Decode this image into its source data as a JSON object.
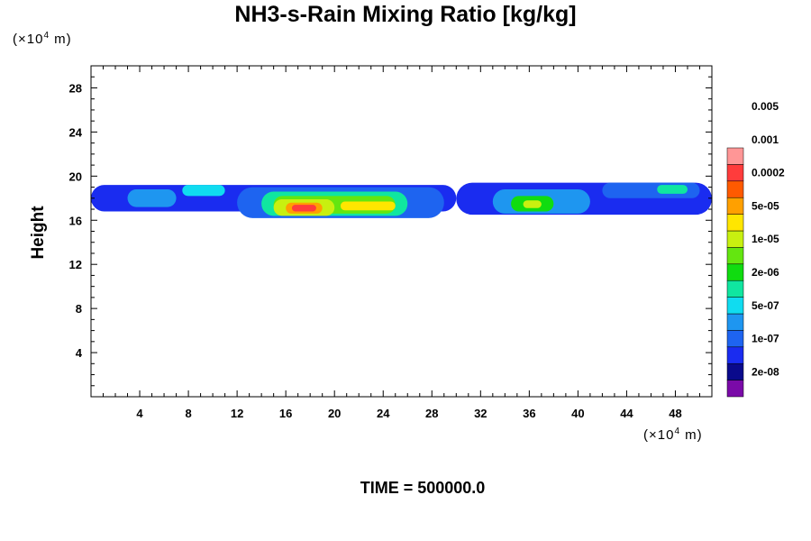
{
  "chart_data": {
    "type": "heatmap",
    "title": "NH3-s-Rain Mixing Ratio [kg/kg]",
    "ylabel": "Height",
    "xlabel": "",
    "y_unit": "(×10⁴ m)",
    "x_unit": "(×10⁴ m)",
    "xlim": [
      0,
      51
    ],
    "ylim": [
      0,
      30
    ],
    "x_ticks": [
      4,
      8,
      12,
      16,
      20,
      24,
      28,
      32,
      36,
      40,
      44,
      48
    ],
    "y_ticks": [
      4,
      8,
      12,
      16,
      20,
      24,
      28
    ],
    "colorbar": {
      "levels": [
        "2e-08",
        "1e-07",
        "5e-07",
        "2e-06",
        "1e-05",
        "5e-05",
        "0.0002",
        "0.001",
        "0.005"
      ],
      "colors": [
        "#7a0aa8",
        "#0a0a8c",
        "#1a2cf0",
        "#1e64f0",
        "#1e96f0",
        "#10dcf0",
        "#10e6a0",
        "#10dc10",
        "#64e610",
        "#c8f010",
        "#ffe600",
        "#ffa000",
        "#ff5a00",
        "#ff3c3c",
        "#ff9696"
      ]
    },
    "regions": [
      {
        "x": [
          0,
          5
        ],
        "y": [
          17.3,
          18.4
        ],
        "level": 1
      },
      {
        "x": [
          0,
          30
        ],
        "y": [
          16.8,
          19.2
        ],
        "level": 2
      },
      {
        "x": [
          3,
          7
        ],
        "y": [
          17.2,
          18.8
        ],
        "level": 4
      },
      {
        "x": [
          7.5,
          11
        ],
        "y": [
          18.2,
          19.2
        ],
        "level": 5
      },
      {
        "x": [
          12,
          29
        ],
        "y": [
          16.2,
          19.0
        ],
        "level": 3
      },
      {
        "x": [
          14,
          26
        ],
        "y": [
          16.4,
          18.6
        ],
        "level": 6
      },
      {
        "x": [
          15,
          25
        ],
        "y": [
          16.6,
          18.2
        ],
        "level": 8
      },
      {
        "x": [
          15,
          20
        ],
        "y": [
          16.4,
          17.9
        ],
        "level": 9
      },
      {
        "x": [
          16,
          19
        ],
        "y": [
          16.6,
          17.6
        ],
        "level": 11
      },
      {
        "x": [
          16.5,
          18.5
        ],
        "y": [
          16.8,
          17.4
        ],
        "level": 13
      },
      {
        "x": [
          20.5,
          25
        ],
        "y": [
          16.9,
          17.7
        ],
        "level": 10
      },
      {
        "x": [
          30,
          51
        ],
        "y": [
          16.5,
          19.4
        ],
        "level": 2
      },
      {
        "x": [
          33,
          41
        ],
        "y": [
          16.6,
          18.8
        ],
        "level": 4
      },
      {
        "x": [
          34.5,
          38
        ],
        "y": [
          16.8,
          18.2
        ],
        "level": 7
      },
      {
        "x": [
          35.5,
          37
        ],
        "y": [
          17.1,
          17.8
        ],
        "level": 9
      },
      {
        "x": [
          42,
          50
        ],
        "y": [
          18.0,
          19.4
        ],
        "level": 3
      },
      {
        "x": [
          46.5,
          49
        ],
        "y": [
          18.4,
          19.2
        ],
        "level": 6
      }
    ]
  },
  "footer": {
    "time_label": "TIME = 500000.0"
  }
}
